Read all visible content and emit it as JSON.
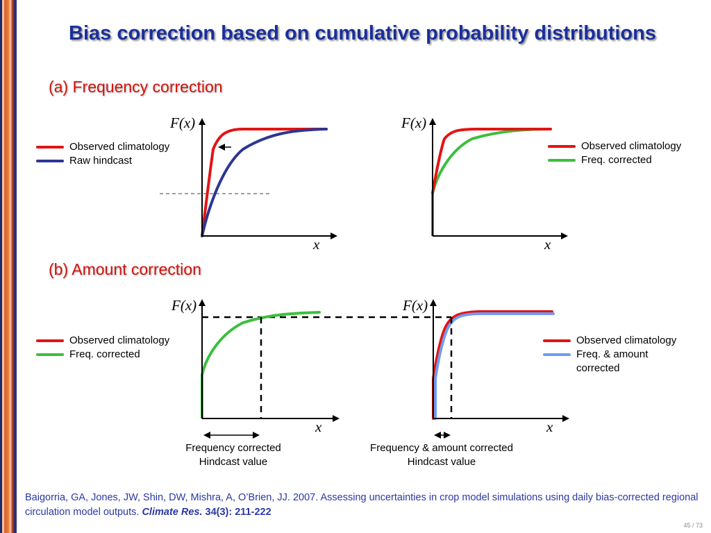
{
  "title": "Bias correction based on cumulative probability distributions",
  "sections": {
    "a": "(a) Frequency correction",
    "b": "(b) Amount correction"
  },
  "axis": {
    "y": "F(x)",
    "x": "x"
  },
  "colors": {
    "observed": "#e31414",
    "raw_hindcast": "#2d3691",
    "freq_corrected": "#3cbf3c",
    "freq_amount_corrected": "#6f9bef"
  },
  "legends": {
    "a1": [
      "Observed climatology",
      "Raw hindcast"
    ],
    "a2": [
      "Observed climatology",
      "Freq. corrected"
    ],
    "b1": [
      "Observed climatology",
      "Freq. corrected"
    ],
    "b2": [
      "Observed climatology",
      "Freq. & amount",
      "corrected"
    ]
  },
  "captions": {
    "b1": [
      "Frequency corrected",
      "Hindcast value"
    ],
    "b2": [
      "Frequency & amount corrected",
      "Hindcast value"
    ]
  },
  "reference": {
    "text": "Baigorria, GA, Jones, JW, Shin, DW, Mishra, A, O’Brien, JJ. 2007. Assessing uncertainties in crop model simulations using daily bias-corrected regional circulation model outputs.",
    "journal": "Climate Res.",
    "volume": "34(3): 211-222"
  },
  "slide_number": "45 / 73"
}
